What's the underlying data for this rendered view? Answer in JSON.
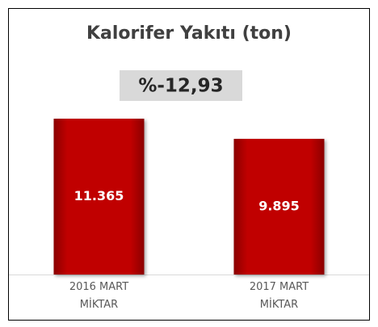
{
  "chart_data": {
    "type": "bar",
    "title": "Kalorifer Yakıtı (ton)",
    "annotation": "%-12,93",
    "categories": [
      "2016 MART MİKTAR",
      "2017 MART MİKTAR"
    ],
    "values": [
      11365,
      9895
    ],
    "value_labels": [
      "11.365",
      "9.895"
    ],
    "color": "#c00000"
  }
}
